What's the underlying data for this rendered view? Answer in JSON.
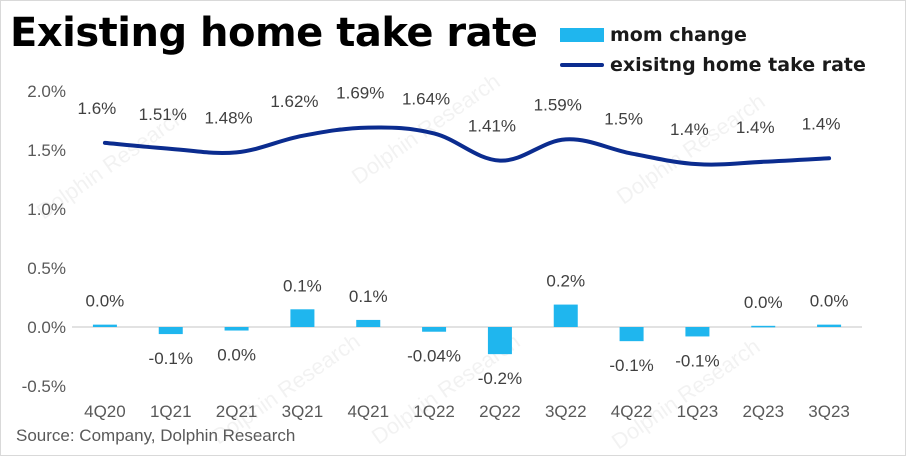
{
  "title": "Existing home take rate",
  "legend": {
    "bar_label": "mom change",
    "line_label": "exisitng home take rate"
  },
  "source": "Source: Company, Dolphin Research",
  "watermark": "Dolphin Research",
  "colors": {
    "bar": "#1fb6ee",
    "line": "#0b2c8f",
    "axis": "#d9d9d9",
    "tick_text": "#595959",
    "label_text": "#404040"
  },
  "chart_data": {
    "type": "bar+line",
    "categories": [
      "4Q20",
      "1Q21",
      "2Q21",
      "3Q21",
      "4Q21",
      "1Q22",
      "2Q22",
      "3Q22",
      "4Q22",
      "1Q23",
      "2Q23",
      "3Q23"
    ],
    "series": [
      {
        "name": "mom change",
        "type": "bar",
        "values": [
          0.02,
          -0.06,
          -0.03,
          0.15,
          0.06,
          -0.04,
          -0.23,
          0.19,
          -0.12,
          -0.08,
          0.01,
          0.02
        ],
        "labels": [
          "0.0%",
          "-0.1%",
          "0.0%",
          "0.1%",
          "0.1%",
          "-0.04%",
          "-0.2%",
          "0.2%",
          "-0.1%",
          "-0.1%",
          "0.0%",
          "0.0%"
        ]
      },
      {
        "name": "exisitng home take rate",
        "type": "line",
        "values": [
          1.56,
          1.51,
          1.48,
          1.62,
          1.69,
          1.64,
          1.41,
          1.59,
          1.47,
          1.38,
          1.4,
          1.43
        ],
        "labels": [
          "1.6%",
          "1.51%",
          "1.48%",
          "1.62%",
          "1.69%",
          "1.64%",
          "1.41%",
          "1.59%",
          "1.5%",
          "1.4%",
          "1.4%",
          "1.4%"
        ]
      }
    ],
    "yticks": [
      "2.0%",
      "1.5%",
      "1.0%",
      "0.5%",
      "0.0%",
      "-0.5%"
    ],
    "ytick_values": [
      2.0,
      1.5,
      1.0,
      0.5,
      0.0,
      -0.5
    ],
    "ylim": [
      -0.5,
      2.0
    ],
    "grid": false,
    "legend_position": "top-right"
  }
}
